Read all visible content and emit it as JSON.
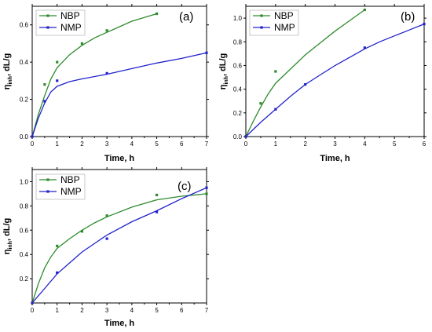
{
  "chart_data": [
    {
      "type": "line",
      "panel_label": "(a)",
      "xlabel": "Time, h",
      "ylabel_main": "η",
      "ylabel_sub": "inh",
      "ylabel_rest": ", dL/g",
      "xlim": [
        0,
        7
      ],
      "ylim": [
        0,
        0.7
      ],
      "xticks": [
        "0",
        "1",
        "2",
        "3",
        "4",
        "5",
        "6",
        "7"
      ],
      "yticks": [
        "0.0",
        "0.2",
        "0.4",
        "0.6"
      ],
      "legend_position": "top-left",
      "series": [
        {
          "name": "NBP",
          "color": "#2e8b2e",
          "points": [
            [
              0,
              0
            ],
            [
              0.5,
              0.28
            ],
            [
              1,
              0.4
            ],
            [
              2,
              0.5
            ],
            [
              3,
              0.57
            ],
            [
              5,
              0.66
            ]
          ],
          "fit": [
            [
              0,
              0
            ],
            [
              0.25,
              0.12
            ],
            [
              0.5,
              0.22
            ],
            [
              0.75,
              0.31
            ],
            [
              1,
              0.37
            ],
            [
              1.5,
              0.44
            ],
            [
              2,
              0.49
            ],
            [
              2.5,
              0.53
            ],
            [
              3,
              0.56
            ],
            [
              3.5,
              0.59
            ],
            [
              4,
              0.62
            ],
            [
              4.5,
              0.64
            ],
            [
              5,
              0.66
            ]
          ]
        },
        {
          "name": "NMP",
          "color": "#2222cc",
          "points": [
            [
              0,
              0
            ],
            [
              0.5,
              0.19
            ],
            [
              1,
              0.3
            ],
            [
              3,
              0.34
            ],
            [
              7,
              0.45
            ]
          ],
          "fit": [
            [
              0,
              0
            ],
            [
              0.25,
              0.1
            ],
            [
              0.5,
              0.18
            ],
            [
              0.75,
              0.24
            ],
            [
              1,
              0.27
            ],
            [
              1.5,
              0.295
            ],
            [
              2,
              0.31
            ],
            [
              3,
              0.335
            ],
            [
              4,
              0.365
            ],
            [
              5,
              0.395
            ],
            [
              6,
              0.42
            ],
            [
              7,
              0.45
            ]
          ]
        }
      ]
    },
    {
      "type": "line",
      "panel_label": "(b)",
      "xlabel": "Time, h",
      "ylabel_main": "η",
      "ylabel_sub": "inh",
      "ylabel_rest": ", dL/g",
      "xlim": [
        0,
        6
      ],
      "ylim": [
        0,
        1.1
      ],
      "xticks": [
        "0",
        "1",
        "2",
        "3",
        "4",
        "5",
        "6"
      ],
      "yticks": [
        "0.0",
        "0.2",
        "0.4",
        "0.6",
        "0.8",
        "1.0"
      ],
      "legend_position": "top-left",
      "series": [
        {
          "name": "NBP",
          "color": "#2e8b2e",
          "points": [
            [
              0,
              0
            ],
            [
              0.5,
              0.28
            ],
            [
              1,
              0.55
            ],
            [
              4,
              1.07
            ]
          ],
          "fit": [
            [
              0,
              0
            ],
            [
              0.25,
              0.13
            ],
            [
              0.5,
              0.25
            ],
            [
              0.75,
              0.36
            ],
            [
              1,
              0.45
            ],
            [
              1.5,
              0.57
            ],
            [
              2,
              0.69
            ],
            [
              2.5,
              0.79
            ],
            [
              3,
              0.89
            ],
            [
              3.5,
              0.98
            ],
            [
              4,
              1.07
            ]
          ]
        },
        {
          "name": "NMP",
          "color": "#2222cc",
          "points": [
            [
              0,
              0
            ],
            [
              1,
              0.23
            ],
            [
              2,
              0.44
            ],
            [
              4,
              0.75
            ],
            [
              6,
              0.95
            ]
          ],
          "fit": [
            [
              0,
              0
            ],
            [
              0.5,
              0.12
            ],
            [
              1,
              0.23
            ],
            [
              1.5,
              0.34
            ],
            [
              2,
              0.44
            ],
            [
              2.5,
              0.52
            ],
            [
              3,
              0.6
            ],
            [
              3.5,
              0.67
            ],
            [
              4,
              0.74
            ],
            [
              4.5,
              0.8
            ],
            [
              5,
              0.85
            ],
            [
              5.5,
              0.9
            ],
            [
              6,
              0.95
            ]
          ]
        }
      ]
    },
    {
      "type": "line",
      "panel_label": "(c)",
      "xlabel": "Time, h",
      "ylabel_main": "η",
      "ylabel_sub": "inh",
      "ylabel_rest": ", dL/g",
      "xlim": [
        0,
        7
      ],
      "ylim": [
        0,
        1.1
      ],
      "xticks": [
        "0",
        "1",
        "2",
        "3",
        "4",
        "5",
        "6",
        "7"
      ],
      "yticks": [
        "0.2",
        "0.4",
        "0.6",
        "0.8",
        "1.0"
      ],
      "legend_position": "top-left",
      "series": [
        {
          "name": "NBP",
          "color": "#2e8b2e",
          "points": [
            [
              0,
              0
            ],
            [
              1,
              0.47
            ],
            [
              2,
              0.59
            ],
            [
              3,
              0.72
            ],
            [
              5,
              0.89
            ],
            [
              7,
              0.9
            ]
          ],
          "fit": [
            [
              0,
              0
            ],
            [
              0.25,
              0.16
            ],
            [
              0.5,
              0.29
            ],
            [
              0.75,
              0.38
            ],
            [
              1,
              0.45
            ],
            [
              1.5,
              0.53
            ],
            [
              2,
              0.6
            ],
            [
              2.5,
              0.66
            ],
            [
              3,
              0.71
            ],
            [
              4,
              0.79
            ],
            [
              5,
              0.85
            ],
            [
              6,
              0.88
            ],
            [
              7,
              0.9
            ]
          ]
        },
        {
          "name": "NMP",
          "color": "#2222cc",
          "points": [
            [
              0,
              0
            ],
            [
              1,
              0.25
            ],
            [
              3,
              0.53
            ],
            [
              5,
              0.75
            ],
            [
              7,
              0.95
            ]
          ],
          "fit": [
            [
              0,
              0
            ],
            [
              0.5,
              0.12
            ],
            [
              1,
              0.24
            ],
            [
              1.5,
              0.33
            ],
            [
              2,
              0.42
            ],
            [
              3,
              0.56
            ],
            [
              4,
              0.67
            ],
            [
              5,
              0.76
            ],
            [
              6,
              0.86
            ],
            [
              7,
              0.95
            ]
          ]
        }
      ]
    }
  ]
}
